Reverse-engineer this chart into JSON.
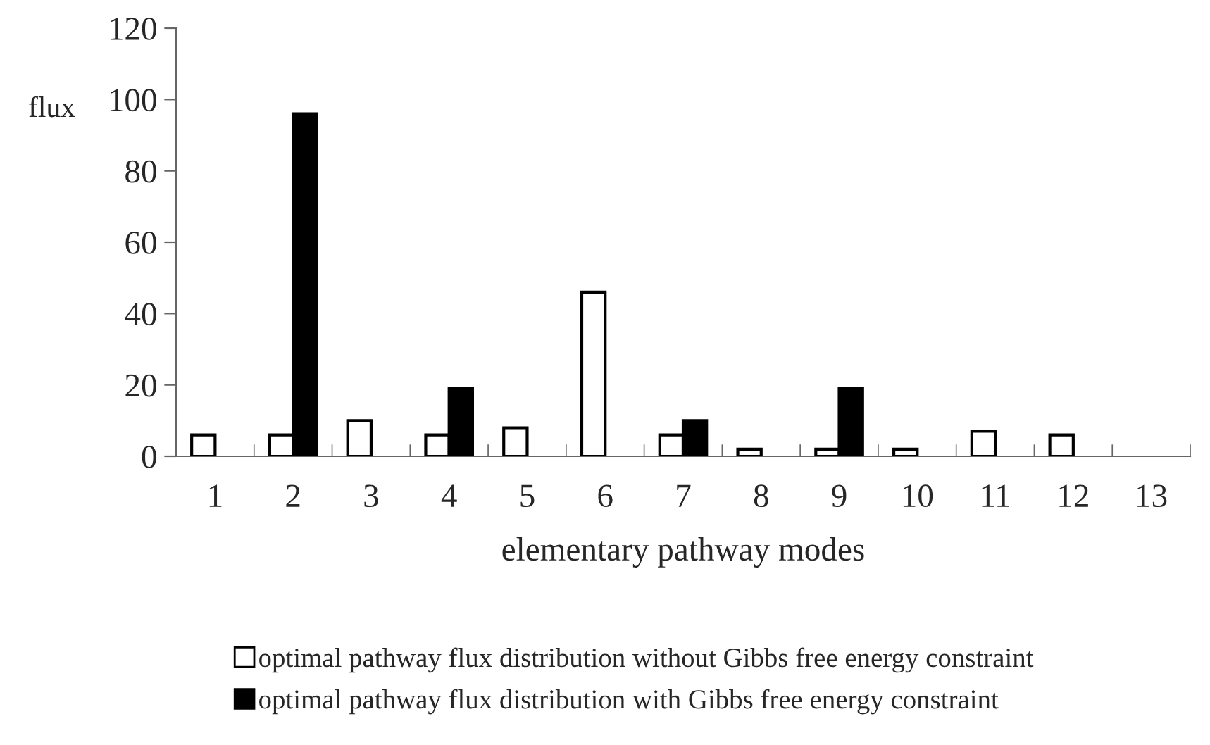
{
  "chart_data": {
    "type": "bar",
    "xlabel": "elementary pathway modes",
    "ylabel": "flux",
    "categories": [
      "1",
      "2",
      "3",
      "4",
      "5",
      "6",
      "7",
      "8",
      "9",
      "10",
      "11",
      "12",
      "13"
    ],
    "series": [
      {
        "name": "optimal pathway flux distribution without Gibbs free energy constraint",
        "color": "#ffffff",
        "values": [
          6,
          6,
          10,
          6,
          8,
          46,
          6,
          2,
          2,
          2,
          7,
          6,
          null
        ]
      },
      {
        "name": "optimal pathway flux distribution with Gibbs free energy constraint",
        "color": "#000000",
        "values": [
          null,
          96,
          null,
          19,
          null,
          null,
          10,
          null,
          19,
          null,
          null,
          null,
          null
        ]
      }
    ],
    "ylim": [
      0,
      120
    ],
    "yticks": [
      0,
      20,
      40,
      60,
      80,
      100,
      120
    ],
    "grid": false,
    "legend": "bottom"
  }
}
